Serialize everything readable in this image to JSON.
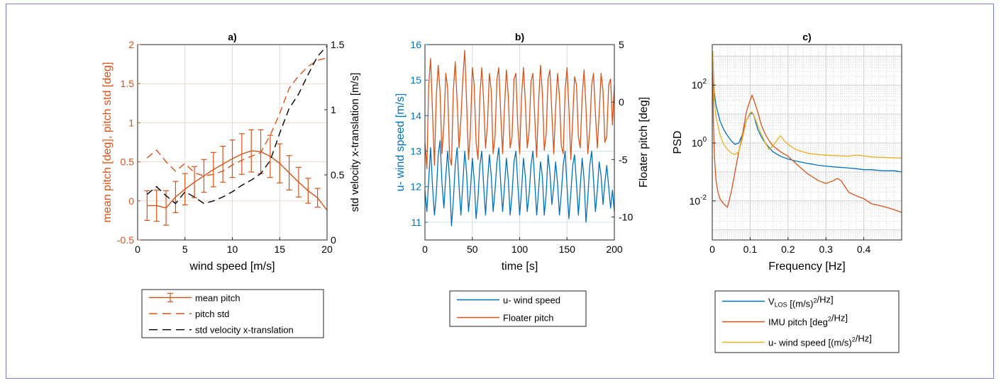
{
  "colors": {
    "blue": "#0072BD",
    "orange": "#D95319",
    "yellow": "#EDB120",
    "black": "#000000"
  },
  "chart_data": [
    {
      "id": "a",
      "type": "line",
      "title": "a)",
      "xlabel": "wind speed [m/s]",
      "ylabel_left": "mean pitch [deg], pitch std [deg]",
      "ylabel_right": "std velocity x-translation [m/s]",
      "xlim": [
        0,
        20
      ],
      "ylim_left": [
        -0.5,
        2
      ],
      "ylim_right": [
        0,
        1.5
      ],
      "xticks": [
        0,
        5,
        10,
        15,
        20
      ],
      "xtick_labels": [
        "0",
        "5",
        "10",
        "15",
        "20"
      ],
      "yticks_left": [
        -0.5,
        0,
        0.5,
        1,
        1.5,
        2
      ],
      "ytick_labels_left": [
        "-0.5",
        "0",
        "0.5",
        "1",
        "1.5",
        "2"
      ],
      "yticks_right": [
        0,
        0.5,
        1,
        1.5
      ],
      "ytick_labels_right": [
        "0",
        "0.5",
        "1",
        "1.5"
      ],
      "grid": true,
      "legend": {
        "position": "below",
        "entries": [
          "mean pitch",
          "pitch std",
          "std velocity x-translation"
        ]
      },
      "series": [
        {
          "name": "mean pitch",
          "axis": "left",
          "color": "#D95319",
          "style": "solid",
          "errorbars": true,
          "x": [
            1,
            2,
            3,
            4,
            5,
            6,
            7,
            8,
            9,
            10,
            11,
            12,
            13,
            14,
            15,
            16,
            17,
            18,
            19,
            20
          ],
          "y": [
            -0.06,
            -0.06,
            -0.09,
            0.05,
            0.15,
            0.24,
            0.32,
            0.4,
            0.47,
            0.54,
            0.6,
            0.64,
            0.63,
            0.57,
            0.48,
            0.36,
            0.24,
            0.13,
            0.04,
            -0.12
          ],
          "err": [
            0.19,
            0.2,
            0.22,
            0.2,
            0.2,
            0.2,
            0.21,
            0.22,
            0.23,
            0.24,
            0.26,
            0.27,
            0.28,
            0.27,
            0.25,
            0.22,
            0.19,
            0.16,
            0.12,
            0.0
          ]
        },
        {
          "name": "pitch std",
          "axis": "left",
          "color": "#D95319",
          "style": "dashed",
          "x": [
            1,
            2,
            3,
            4,
            5,
            6,
            7,
            8,
            9,
            10,
            11,
            12,
            13,
            14,
            15,
            16,
            17,
            18,
            19,
            20
          ],
          "y": [
            0.55,
            0.65,
            0.5,
            0.38,
            0.48,
            0.36,
            0.32,
            0.34,
            0.38,
            0.46,
            0.52,
            0.57,
            0.62,
            0.84,
            1.12,
            1.44,
            1.6,
            1.72,
            1.8,
            1.83
          ]
        },
        {
          "name": "std velocity x-translation",
          "axis": "right",
          "color": "#000000",
          "style": "dashed",
          "x": [
            1,
            2,
            3,
            4,
            5,
            6,
            7,
            8,
            9,
            10,
            11,
            12,
            13,
            14,
            15,
            16,
            17,
            18,
            19,
            20
          ],
          "y": [
            0.35,
            0.41,
            0.34,
            0.28,
            0.37,
            0.33,
            0.28,
            0.3,
            0.33,
            0.37,
            0.42,
            0.46,
            0.51,
            0.61,
            0.82,
            1.01,
            1.12,
            1.27,
            1.41,
            1.49
          ]
        }
      ]
    },
    {
      "id": "b",
      "type": "line",
      "title": "b)",
      "xlabel": "time [s]",
      "ylabel_left": "u- wind speed [m/s]",
      "ylabel_right": "Floater pitch [deg]",
      "xlim": [
        0,
        200
      ],
      "ylim_left": [
        10.5,
        16
      ],
      "ylim_right": [
        -12,
        5
      ],
      "xticks": [
        0,
        50,
        100,
        150,
        200
      ],
      "xtick_labels": [
        "0",
        "50",
        "100",
        "150",
        "200"
      ],
      "yticks_left": [
        11,
        12,
        13,
        14,
        15,
        16
      ],
      "ytick_labels_left": [
        "11",
        "12",
        "13",
        "14",
        "15",
        "16"
      ],
      "yticks_right": [
        -10,
        -5,
        0,
        5
      ],
      "ytick_labels_right": [
        "-10",
        "-5",
        "0",
        "5"
      ],
      "grid": true,
      "legend": {
        "position": "below",
        "entries": [
          "u- wind speed",
          "Floater pitch"
        ]
      },
      "series": [
        {
          "name": "u- wind speed",
          "axis": "left",
          "color": "#0072BD",
          "style": "solid",
          "x": [
            0,
            2,
            4,
            6,
            8,
            10,
            12,
            14,
            16,
            18,
            20,
            22,
            24,
            26,
            28,
            30,
            32,
            34,
            36,
            38,
            40,
            42,
            44,
            46,
            48,
            50,
            52,
            54,
            56,
            58,
            60,
            62,
            64,
            66,
            68,
            70,
            72,
            74,
            76,
            78,
            80,
            82,
            84,
            86,
            88,
            90,
            92,
            94,
            96,
            98,
            100,
            102,
            104,
            106,
            108,
            110,
            112,
            114,
            116,
            118,
            120,
            122,
            124,
            126,
            128,
            130,
            132,
            134,
            136,
            138,
            140,
            142,
            144,
            146,
            148,
            150,
            152,
            154,
            156,
            158,
            160,
            162,
            164,
            166,
            168,
            170,
            172,
            174,
            176,
            178,
            180,
            182,
            184,
            186,
            188,
            190,
            192,
            194,
            196,
            198,
            200
          ],
          "y": [
            11.9,
            11.3,
            12.2,
            13.1,
            12.0,
            11.2,
            11.8,
            12.9,
            13.3,
            12.1,
            11.4,
            12.3,
            13.0,
            12.2,
            10.9,
            11.6,
            12.6,
            13.1,
            12.0,
            11.2,
            12.1,
            13.0,
            12.4,
            11.3,
            11.9,
            12.8,
            12.2,
            11.1,
            11.7,
            12.6,
            13.0,
            12.0,
            11.2,
            12.1,
            12.9,
            12.3,
            11.3,
            11.9,
            12.7,
            13.1,
            12.1,
            11.3,
            12.0,
            12.8,
            12.2,
            11.2,
            11.8,
            12.7,
            13.0,
            12.1,
            11.2,
            11.9,
            12.8,
            12.3,
            11.3,
            11.8,
            12.6,
            13.0,
            12.1,
            11.2,
            11.9,
            12.7,
            12.3,
            11.2,
            11.8,
            12.9,
            12.4,
            11.5,
            12.0,
            12.7,
            12.1,
            11.2,
            11.8,
            12.6,
            13.0,
            12.0,
            11.1,
            11.8,
            12.6,
            12.9,
            12.1,
            11.2,
            12.0,
            12.8,
            12.2,
            11.0,
            11.7,
            12.6,
            13.0,
            12.2,
            11.3,
            11.9,
            12.7,
            12.3,
            11.5,
            12.1,
            12.6,
            12.0,
            11.4,
            11.9,
            11.3
          ]
        },
        {
          "name": "Floater pitch",
          "axis": "right",
          "color": "#D95319",
          "style": "solid",
          "x": [
            0,
            2,
            4,
            6,
            8,
            10,
            12,
            14,
            16,
            18,
            20,
            22,
            24,
            26,
            28,
            30,
            32,
            34,
            36,
            38,
            40,
            42,
            44,
            46,
            48,
            50,
            52,
            54,
            56,
            58,
            60,
            62,
            64,
            66,
            68,
            70,
            72,
            74,
            76,
            78,
            80,
            82,
            84,
            86,
            88,
            90,
            92,
            94,
            96,
            98,
            100,
            102,
            104,
            106,
            108,
            110,
            112,
            114,
            116,
            118,
            120,
            122,
            124,
            126,
            128,
            130,
            132,
            134,
            136,
            138,
            140,
            142,
            144,
            146,
            148,
            150,
            152,
            154,
            156,
            158,
            160,
            162,
            164,
            166,
            168,
            170,
            172,
            174,
            176,
            178,
            180,
            182,
            184,
            186,
            188,
            190,
            192,
            194,
            196,
            198,
            200
          ],
          "y": [
            -3.5,
            -5.8,
            1.5,
            3.8,
            -1.0,
            -5.5,
            0.5,
            3.2,
            0.8,
            -4.5,
            -2.0,
            2.5,
            1.2,
            -4.8,
            -5.5,
            1.0,
            3.5,
            0.0,
            -4.0,
            -1.5,
            2.0,
            4.5,
            0.0,
            -5.0,
            -2.5,
            3.0,
            1.5,
            -3.5,
            -5.0,
            0.5,
            3.0,
            0.0,
            -4.0,
            -2.0,
            2.5,
            1.0,
            -4.5,
            -3.0,
            2.0,
            3.0,
            -1.0,
            -4.5,
            -0.5,
            2.8,
            0.5,
            -4.0,
            -3.0,
            2.0,
            2.5,
            -2.0,
            -4.5,
            0.5,
            3.0,
            0.0,
            -4.0,
            -2.5,
            1.8,
            2.5,
            -1.5,
            -4.8,
            0.0,
            3.2,
            0.8,
            -4.2,
            -2.8,
            2.0,
            2.8,
            -1.0,
            -4.5,
            -0.5,
            2.5,
            0.5,
            -3.8,
            -4.5,
            1.0,
            3.0,
            -0.5,
            -5.0,
            -1.5,
            2.2,
            1.5,
            -3.0,
            -4.0,
            0.5,
            2.8,
            -0.5,
            -4.5,
            -2.5,
            1.5,
            2.5,
            -1.0,
            -4.0,
            -1.0,
            2.5,
            1.0,
            -3.5,
            -3.0,
            1.5,
            2.0,
            -2.0,
            1.5
          ]
        }
      ]
    },
    {
      "id": "c",
      "type": "line",
      "title": "c)",
      "xlabel": "Frequency [Hz]",
      "ylabel": "PSD",
      "xlim": [
        0,
        0.5
      ],
      "ylim_log10": [
        -3.35,
        3.4
      ],
      "yscale": "log",
      "xticks": [
        0,
        0.1,
        0.2,
        0.3,
        0.4
      ],
      "xtick_labels": [
        "0",
        "0.1",
        "0.2",
        "0.3",
        "0.4"
      ],
      "yticks": [
        0.01,
        1,
        100
      ],
      "ytick_labels": [
        {
          "base": "10",
          "exp": "-2"
        },
        {
          "base": "10",
          "exp": "0"
        },
        {
          "base": "10",
          "exp": "2"
        }
      ],
      "grid": true,
      "legend": {
        "position": "below",
        "entries": [
          {
            "parts": [
              {
                "t": "V"
              },
              {
                "t": "LOS",
                "sub": true
              },
              {
                "t": " [(m/s)"
              },
              {
                "t": "2",
                "sup": true
              },
              {
                "t": "/Hz]"
              }
            ]
          },
          {
            "parts": [
              {
                "t": "IMU pitch [deg"
              },
              {
                "t": "2",
                "sup": true
              },
              {
                "t": "/Hz]"
              }
            ]
          },
          {
            "parts": [
              {
                "t": "u- wind speed [(m/s)"
              },
              {
                "t": "2",
                "sup": true
              },
              {
                "t": "/Hz]"
              }
            ]
          }
        ]
      },
      "series": [
        {
          "name": "V_LOS",
          "color": "#0072BD",
          "style": "solid",
          "x": [
            0.001,
            0.005,
            0.01,
            0.02,
            0.03,
            0.04,
            0.05,
            0.06,
            0.07,
            0.08,
            0.09,
            0.1,
            0.105,
            0.11,
            0.115,
            0.12,
            0.13,
            0.14,
            0.15,
            0.16,
            0.18,
            0.2,
            0.22,
            0.25,
            0.28,
            0.3,
            0.32,
            0.35,
            0.38,
            0.4,
            0.42,
            0.45,
            0.48,
            0.5
          ],
          "y": [
            1500,
            60,
            20,
            6,
            3,
            1.8,
            1.2,
            0.9,
            1.0,
            2.0,
            6,
            10,
            11,
            9,
            5,
            3,
            1.6,
            1.0,
            0.7,
            0.5,
            0.35,
            0.28,
            0.24,
            0.2,
            0.17,
            0.16,
            0.15,
            0.14,
            0.13,
            0.12,
            0.12,
            0.11,
            0.11,
            0.1
          ]
        },
        {
          "name": "IMU pitch",
          "color": "#D95319",
          "style": "solid",
          "x": [
            0.001,
            0.003,
            0.006,
            0.01,
            0.015,
            0.02,
            0.03,
            0.04,
            0.05,
            0.06,
            0.07,
            0.08,
            0.09,
            0.1,
            0.105,
            0.11,
            0.12,
            0.13,
            0.14,
            0.15,
            0.16,
            0.18,
            0.2,
            0.22,
            0.25,
            0.28,
            0.3,
            0.32,
            0.33,
            0.34,
            0.36,
            0.38,
            0.4,
            0.42,
            0.44,
            0.46,
            0.48,
            0.5
          ],
          "y": [
            1500,
            5,
            0.3,
            0.05,
            0.02,
            0.012,
            0.008,
            0.006,
            0.02,
            0.1,
            0.5,
            2,
            12,
            30,
            45,
            30,
            12,
            4,
            2,
            1.2,
            0.8,
            0.5,
            0.35,
            0.2,
            0.09,
            0.05,
            0.04,
            0.05,
            0.06,
            0.05,
            0.02,
            0.015,
            0.012,
            0.008,
            0.007,
            0.006,
            0.005,
            0.004
          ]
        },
        {
          "name": "u- wind speed",
          "color": "#EDB120",
          "style": "solid",
          "x": [
            0.001,
            0.005,
            0.01,
            0.02,
            0.03,
            0.04,
            0.05,
            0.06,
            0.07,
            0.08,
            0.09,
            0.1,
            0.105,
            0.11,
            0.12,
            0.13,
            0.14,
            0.15,
            0.16,
            0.17,
            0.18,
            0.19,
            0.2,
            0.22,
            0.25,
            0.28,
            0.3,
            0.32,
            0.34,
            0.36,
            0.38,
            0.4,
            0.42,
            0.45,
            0.48,
            0.5
          ],
          "y": [
            1500,
            30,
            8,
            2,
            0.9,
            0.6,
            0.45,
            0.4,
            0.5,
            1.5,
            6,
            11,
            12,
            9,
            4,
            2,
            1.0,
            0.6,
            0.8,
            1.2,
            1.8,
            1.2,
            0.9,
            0.6,
            0.45,
            0.4,
            0.38,
            0.37,
            0.36,
            0.35,
            0.38,
            0.36,
            0.33,
            0.32,
            0.31,
            0.3
          ]
        }
      ]
    }
  ]
}
